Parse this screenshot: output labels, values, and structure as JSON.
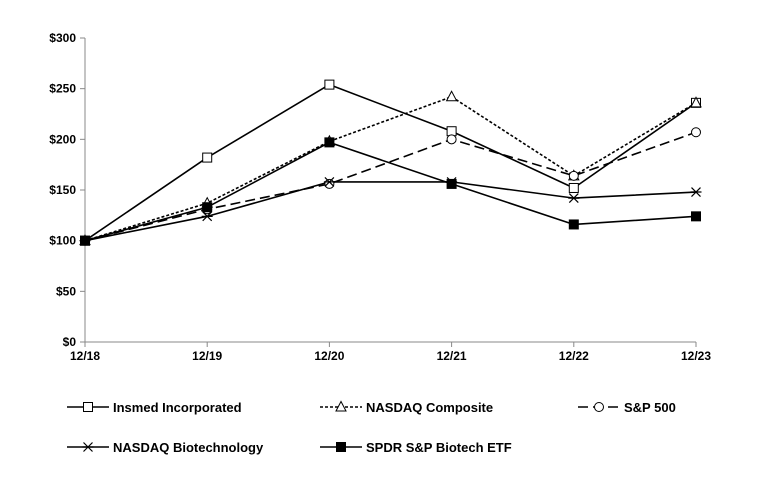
{
  "chart_data": {
    "type": "line",
    "title": "",
    "xlabel": "",
    "ylabel": "",
    "categories": [
      "12/18",
      "12/19",
      "12/20",
      "12/21",
      "12/22",
      "12/23"
    ],
    "ylim": [
      0,
      300
    ],
    "yticks": [
      0,
      50,
      100,
      150,
      200,
      250,
      300
    ],
    "ytick_labels": [
      "$0",
      "$50",
      "$100",
      "$150",
      "$200",
      "$250",
      "$300"
    ],
    "grid": false,
    "legend_position": "bottom",
    "series": [
      {
        "name": "Insmed Incorporated",
        "values": [
          100,
          182,
          254,
          208,
          152,
          236
        ],
        "marker": "open-square",
        "dash": "solid"
      },
      {
        "name": "NASDAQ Composite",
        "values": [
          100,
          137,
          198,
          242,
          164,
          236
        ],
        "marker": "open-triangle",
        "dash": "dotted"
      },
      {
        "name": "S&P 500",
        "values": [
          100,
          131,
          156,
          200,
          164,
          207
        ],
        "marker": "open-circle",
        "dash": "dashed"
      },
      {
        "name": "NASDAQ Biotechnology",
        "values": [
          100,
          124,
          158,
          158,
          142,
          148
        ],
        "marker": "asterisk",
        "dash": "solid"
      },
      {
        "name": "SPDR S&P Biotech ETF",
        "values": [
          100,
          133,
          197,
          156,
          116,
          124
        ],
        "marker": "filled-square",
        "dash": "solid"
      }
    ]
  }
}
